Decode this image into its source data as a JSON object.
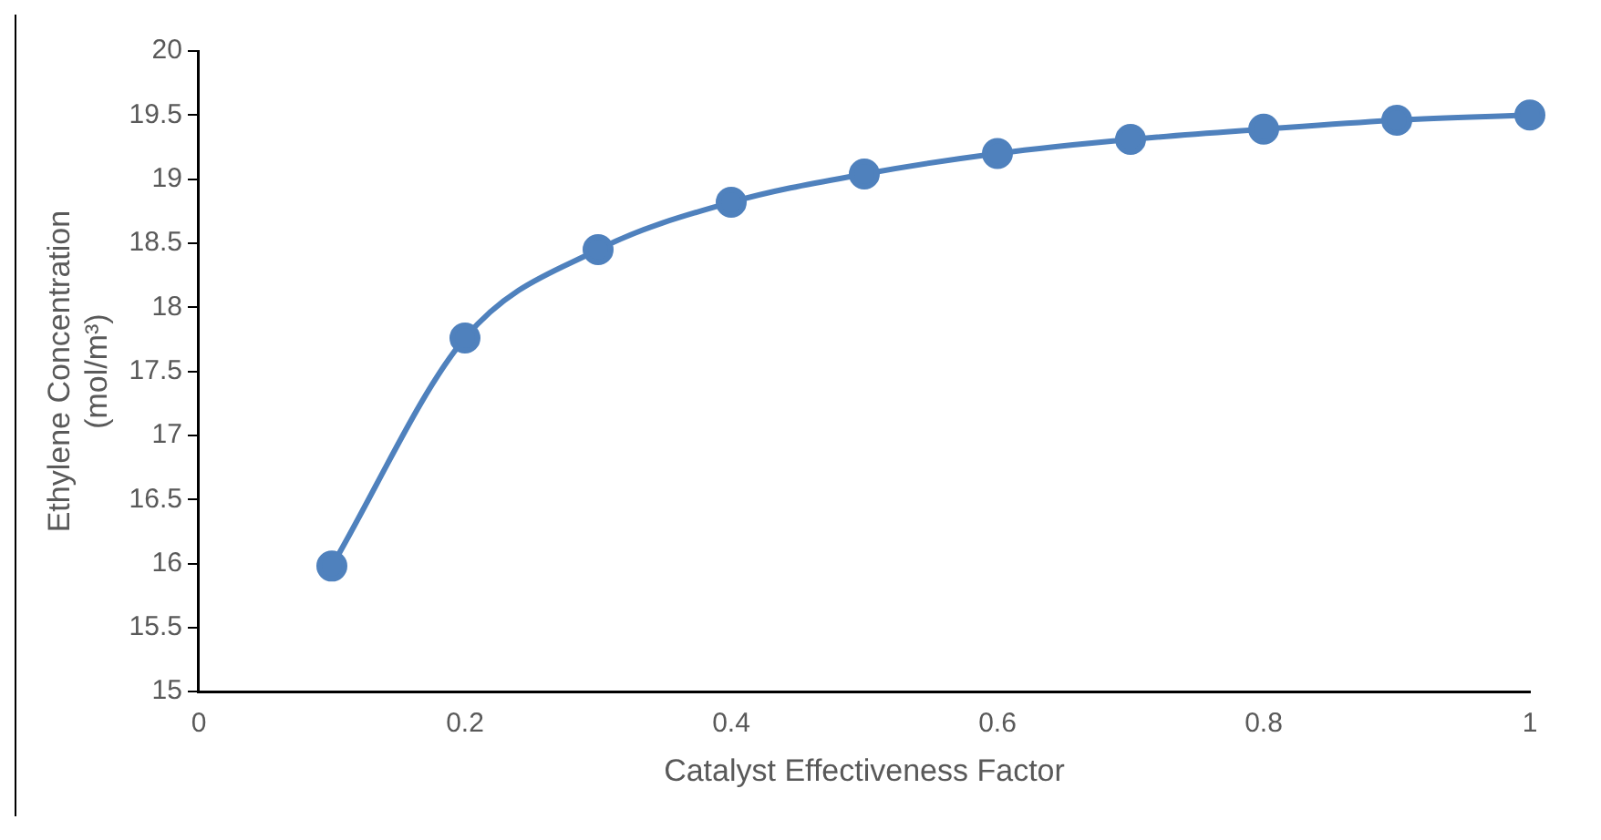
{
  "chart_data": {
    "type": "line",
    "xlabel": "Catalyst Effectiveness Factor",
    "ylabel": "Ethylene Concentration (mol/m³)",
    "x": [
      0.1,
      0.2,
      0.3,
      0.4,
      0.5,
      0.6,
      0.7,
      0.8,
      0.9,
      1.0
    ],
    "series": [
      {
        "color": "#4f81bd",
        "values": [
          15.98,
          17.76,
          18.45,
          18.82,
          19.04,
          19.2,
          19.31,
          19.39,
          19.46,
          19.5
        ]
      }
    ],
    "xlim": [
      0,
      1
    ],
    "xticks": [
      0,
      0.2,
      0.4,
      0.6,
      0.8,
      1
    ],
    "ylim": [
      15,
      20
    ],
    "yticks": [
      15,
      15.5,
      16,
      16.5,
      17,
      17.5,
      18,
      18.5,
      19,
      19.5,
      20
    ],
    "grid": false,
    "legend": false,
    "marker": "circle",
    "line_style": "solid"
  }
}
